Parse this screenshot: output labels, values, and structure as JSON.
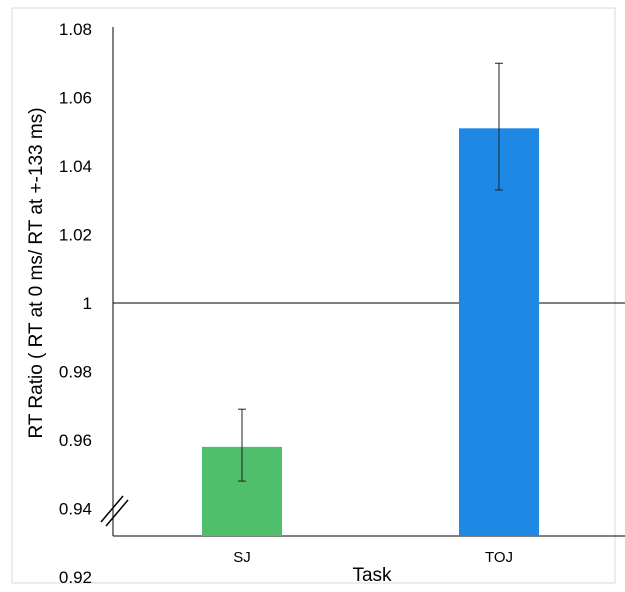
{
  "chart_data": {
    "type": "bar",
    "categories": [
      "SJ",
      "TOJ"
    ],
    "values": [
      0.958,
      1.051
    ],
    "error_bars": [
      {
        "low": 0.948,
        "high": 0.969
      },
      {
        "low": 1.033,
        "high": 1.07
      }
    ],
    "colors": [
      "#4fbf6b",
      "#1e88e5"
    ],
    "xlabel": "Task",
    "ylabel": "RT Ratio ( RT at 0 ms/ RT at +-133 ms)",
    "ylim": [
      0.9,
      1.08
    ],
    "yticks": [
      0.92,
      0.94,
      0.96,
      0.98,
      1.0,
      1.02,
      1.04,
      1.06,
      1.08
    ],
    "ytick_labels": [
      "0.92",
      "0.94",
      "0.96",
      "0.98",
      "1",
      "1.02",
      "1.04",
      "1.06",
      "1.08"
    ],
    "reference_line": 1.0,
    "axis_break": true,
    "grid": false,
    "legend": "none"
  }
}
